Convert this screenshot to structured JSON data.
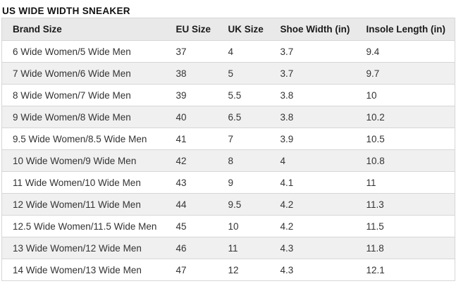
{
  "page": {
    "title": "US WIDE WIDTH SNEAKER"
  },
  "table": {
    "headers": [
      "Brand Size",
      "EU Size",
      "UK Size",
      "Shoe Width (in)",
      "Insole Length (in)"
    ],
    "header_keys": [
      "brand-size",
      "eu-size",
      "uk-size",
      "shoe-width",
      "insole-length"
    ],
    "rows": [
      [
        "6 Wide Women/5 Wide Men",
        "37",
        "4",
        "3.7",
        "9.4"
      ],
      [
        "7 Wide Women/6 Wide Men",
        "38",
        "5",
        "3.7",
        "9.7"
      ],
      [
        "8 Wide Women/7 Wide Men",
        "39",
        "5.5",
        "3.8",
        "10"
      ],
      [
        "9 Wide Women/8 Wide Men",
        "40",
        "6.5",
        "3.8",
        "10.2"
      ],
      [
        "9.5 Wide Women/8.5 Wide Men",
        "41",
        "7",
        "3.9",
        "10.5"
      ],
      [
        "10 Wide Women/9 Wide Men",
        "42",
        "8",
        "4",
        "10.8"
      ],
      [
        "11 Wide Women/10 Wide Men",
        "43",
        "9",
        "4.1",
        "11"
      ],
      [
        "12 Wide Women/11 Wide Men",
        "44",
        "9.5",
        "4.2",
        "11.3"
      ],
      [
        "12.5 Wide Women/11.5 Wide Men",
        "45",
        "10",
        "4.2",
        "11.5"
      ],
      [
        "13 Wide Women/12 Wide Men",
        "46",
        "11",
        "4.3",
        "11.8"
      ],
      [
        "14 Wide Women/13 Wide Men",
        "47",
        "12",
        "4.3",
        "12.1"
      ]
    ]
  },
  "colors": {
    "title_text": "#111111",
    "header_bg": "#e9e9e9",
    "header_text": "#1a1a1a",
    "zebra_bg": "#f0f0f0",
    "cell_text": "#333333",
    "border": "#d6d6d6"
  }
}
